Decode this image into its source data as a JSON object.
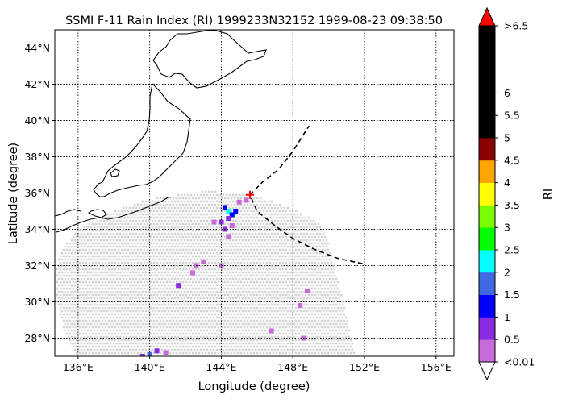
{
  "map": {
    "title": "SSMI F-11 Rain Index (RI) 1999233N32152 1999-08-23 09:38:50",
    "xlabel": "Longitude (degree)",
    "ylabel": "Latitude (degree)",
    "lon_range": [
      134.7,
      157.0
    ],
    "lat_range": [
      27.0,
      45.0
    ],
    "lon_ticks": [
      {
        "value": 136,
        "label": "136°E"
      },
      {
        "value": 140,
        "label": "140°E"
      },
      {
        "value": 144,
        "label": "144°E"
      },
      {
        "value": 148,
        "label": "148°E"
      },
      {
        "value": 152,
        "label": "152°E"
      },
      {
        "value": 156,
        "label": "156°E"
      }
    ],
    "lat_ticks": [
      {
        "value": 28,
        "label": "28°N"
      },
      {
        "value": 30,
        "label": "30°N"
      },
      {
        "value": 32,
        "label": "32°N"
      },
      {
        "value": 34,
        "label": "34°N"
      },
      {
        "value": 36,
        "label": "36°N"
      },
      {
        "value": 38,
        "label": "38°N"
      },
      {
        "value": 40,
        "label": "40°N"
      },
      {
        "value": 42,
        "label": "42°N"
      },
      {
        "value": 44,
        "label": "44°N"
      }
    ],
    "gridlines": "dotted",
    "storm_center": {
      "lon": 145.6,
      "lat": 35.9,
      "marker": "+",
      "color": "#ff0000"
    },
    "track": [
      [
        151.9,
        32.1
      ],
      [
        150.5,
        32.4
      ],
      [
        149.2,
        32.9
      ],
      [
        148.0,
        33.5
      ],
      [
        147.0,
        34.2
      ],
      [
        146.0,
        35.0
      ],
      [
        145.6,
        35.9
      ],
      [
        146.3,
        36.6
      ],
      [
        147.2,
        37.3
      ],
      [
        148.0,
        38.3
      ],
      [
        148.9,
        39.7
      ]
    ],
    "swath_no_rain_color": "#d3d3d3",
    "rain_cells": [
      {
        "lon": 144.4,
        "lat": 35.0,
        "ri": 2.2
      },
      {
        "lon": 144.6,
        "lat": 34.8,
        "ri": 1.2
      },
      {
        "lon": 144.2,
        "lat": 35.2,
        "ri": 1.0
      },
      {
        "lon": 144.8,
        "lat": 35.0,
        "ri": 1.0
      },
      {
        "lon": 144.4,
        "lat": 34.6,
        "ri": 0.8
      },
      {
        "lon": 144.0,
        "lat": 34.4,
        "ri": 0.6
      },
      {
        "lon": 144.2,
        "lat": 34.0,
        "ri": 0.6
      },
      {
        "lon": 144.6,
        "lat": 34.2,
        "ri": 0.4
      },
      {
        "lon": 144.4,
        "lat": 33.6,
        "ri": 0.3
      },
      {
        "lon": 145.0,
        "lat": 35.5,
        "ri": 0.3
      },
      {
        "lon": 145.4,
        "lat": 35.6,
        "ri": 0.2
      },
      {
        "lon": 143.6,
        "lat": 34.4,
        "ri": 0.4
      },
      {
        "lon": 142.6,
        "lat": 32.0,
        "ri": 0.4
      },
      {
        "lon": 142.4,
        "lat": 31.6,
        "ri": 0.3
      },
      {
        "lon": 141.6,
        "lat": 30.9,
        "ri": 0.5
      },
      {
        "lon": 143.0,
        "lat": 32.2,
        "ri": 0.3
      },
      {
        "lon": 144.0,
        "lat": 32.0,
        "ri": 0.3
      },
      {
        "lon": 148.8,
        "lat": 30.6,
        "ri": 0.3
      },
      {
        "lon": 148.4,
        "lat": 29.8,
        "ri": 0.2
      },
      {
        "lon": 148.6,
        "lat": 28.0,
        "ri": 0.2
      },
      {
        "lon": 146.8,
        "lat": 28.4,
        "ri": 0.2
      },
      {
        "lon": 140.0,
        "lat": 27.1,
        "ri": 1.8
      },
      {
        "lon": 139.6,
        "lat": 27.0,
        "ri": 0.8
      },
      {
        "lon": 140.4,
        "lat": 27.3,
        "ri": 0.5
      },
      {
        "lon": 140.9,
        "lat": 27.2,
        "ri": 0.3
      }
    ]
  },
  "colorbar": {
    "label": "RI",
    "colors": [
      "#c86adc",
      "#8a2be2",
      "#0000ff",
      "#4169e1",
      "#00ffff",
      "#00ff00",
      "#7cfc00",
      "#ffff00",
      "#ffa500",
      "#8b0000",
      "#000000",
      "#000000",
      "#000000",
      "#000000",
      "#000000"
    ],
    "under_color": "#ffffff",
    "over_color": "#ff0000",
    "tick_labels": [
      "<0.01",
      "0.5",
      "1",
      "1.5",
      "2",
      "2.5",
      "3",
      "3.5",
      "4",
      "4.5",
      "5",
      "5.5",
      "6",
      ">6.5"
    ]
  }
}
